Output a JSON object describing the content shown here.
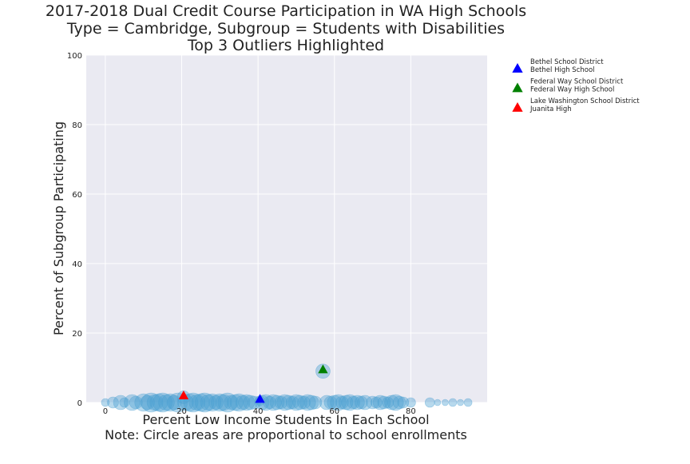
{
  "chart_data": {
    "type": "scatter",
    "title_lines": [
      "2017-2018 Dual Credit Course Participation in WA High Schools",
      "Type = Cambridge, Subgroup = Students with Disabilities",
      "Top 3 Outliers Highlighted"
    ],
    "xlabel_lines": [
      "Percent Low Income Students In Each School",
      "Note: Circle areas are proportional to school enrollments"
    ],
    "ylabel": "Percent of Subgroup Participating",
    "xlim": [
      -5,
      100
    ],
    "ylim": [
      0,
      100
    ],
    "xticks": [
      0,
      20,
      40,
      60,
      80
    ],
    "yticks": [
      0,
      20,
      40,
      60,
      80,
      100
    ],
    "grid": true,
    "legend_position": "outside-right-top",
    "colors": {
      "plot_bg": "#eaeaf2",
      "grid": "#ffffff",
      "circles": "#4c9fd1"
    },
    "schools": [
      {
        "x": 0,
        "y": 0,
        "r": 5
      },
      {
        "x": 2,
        "y": 0,
        "r": 7
      },
      {
        "x": 4,
        "y": 0,
        "r": 9
      },
      {
        "x": 5,
        "y": 0,
        "r": 6
      },
      {
        "x": 7,
        "y": 0,
        "r": 10
      },
      {
        "x": 8,
        "y": 0,
        "r": 8
      },
      {
        "x": 10,
        "y": 0,
        "r": 11
      },
      {
        "x": 11,
        "y": 0,
        "r": 9
      },
      {
        "x": 12,
        "y": 0,
        "r": 12
      },
      {
        "x": 13,
        "y": 0,
        "r": 10
      },
      {
        "x": 14,
        "y": 0,
        "r": 11
      },
      {
        "x": 15,
        "y": 0,
        "r": 12
      },
      {
        "x": 16,
        "y": 0,
        "r": 10
      },
      {
        "x": 17,
        "y": 0,
        "r": 11
      },
      {
        "x": 18,
        "y": 0,
        "r": 9
      },
      {
        "x": 19,
        "y": 0,
        "r": 12
      },
      {
        "x": 21,
        "y": 0,
        "r": 10
      },
      {
        "x": 22,
        "y": 0,
        "r": 11
      },
      {
        "x": 23,
        "y": 0,
        "r": 12
      },
      {
        "x": 24,
        "y": 0,
        "r": 10
      },
      {
        "x": 25,
        "y": 0,
        "r": 11
      },
      {
        "x": 26,
        "y": 0,
        "r": 12
      },
      {
        "x": 27,
        "y": 0,
        "r": 10
      },
      {
        "x": 28,
        "y": 0,
        "r": 11
      },
      {
        "x": 29,
        "y": 0,
        "r": 9
      },
      {
        "x": 30,
        "y": 0,
        "r": 11
      },
      {
        "x": 31,
        "y": 0,
        "r": 10
      },
      {
        "x": 32,
        "y": 0,
        "r": 12
      },
      {
        "x": 33,
        "y": 0,
        "r": 9
      },
      {
        "x": 34,
        "y": 0,
        "r": 10
      },
      {
        "x": 35,
        "y": 0,
        "r": 11
      },
      {
        "x": 36,
        "y": 0,
        "r": 9
      },
      {
        "x": 37,
        "y": 0,
        "r": 10
      },
      {
        "x": 38,
        "y": 0,
        "r": 9
      },
      {
        "x": 39,
        "y": 0,
        "r": 8
      },
      {
        "x": 41,
        "y": 0,
        "r": 9
      },
      {
        "x": 42,
        "y": 0,
        "r": 10
      },
      {
        "x": 43,
        "y": 0,
        "r": 8
      },
      {
        "x": 44,
        "y": 0,
        "r": 10
      },
      {
        "x": 45,
        "y": 0,
        "r": 9
      },
      {
        "x": 46,
        "y": 0,
        "r": 8
      },
      {
        "x": 47,
        "y": 0,
        "r": 10
      },
      {
        "x": 48,
        "y": 0,
        "r": 9
      },
      {
        "x": 49,
        "y": 0,
        "r": 8
      },
      {
        "x": 50,
        "y": 0,
        "r": 10
      },
      {
        "x": 51,
        "y": 0,
        "r": 9
      },
      {
        "x": 52,
        "y": 0,
        "r": 8
      },
      {
        "x": 53,
        "y": 0,
        "r": 10
      },
      {
        "x": 54,
        "y": 0,
        "r": 9
      },
      {
        "x": 55,
        "y": 0,
        "r": 8
      },
      {
        "x": 58,
        "y": 0,
        "r": 9
      },
      {
        "x": 59,
        "y": 0,
        "r": 8
      },
      {
        "x": 60,
        "y": 0,
        "r": 9
      },
      {
        "x": 61,
        "y": 0,
        "r": 10
      },
      {
        "x": 62,
        "y": 0,
        "r": 8
      },
      {
        "x": 63,
        "y": 0,
        "r": 9
      },
      {
        "x": 64,
        "y": 0,
        "r": 10
      },
      {
        "x": 65,
        "y": 0,
        "r": 8
      },
      {
        "x": 66,
        "y": 0,
        "r": 9
      },
      {
        "x": 67,
        "y": 0,
        "r": 8
      },
      {
        "x": 68,
        "y": 0,
        "r": 9
      },
      {
        "x": 70,
        "y": 0,
        "r": 8
      },
      {
        "x": 71,
        "y": 0,
        "r": 7
      },
      {
        "x": 72,
        "y": 0,
        "r": 9
      },
      {
        "x": 73,
        "y": 0,
        "r": 8
      },
      {
        "x": 74,
        "y": 0,
        "r": 7
      },
      {
        "x": 75,
        "y": 0,
        "r": 9
      },
      {
        "x": 76,
        "y": 0,
        "r": 10
      },
      {
        "x": 77,
        "y": 0,
        "r": 8
      },
      {
        "x": 78,
        "y": 0,
        "r": 7
      },
      {
        "x": 80,
        "y": 0,
        "r": 6
      },
      {
        "x": 85,
        "y": 0,
        "r": 6
      },
      {
        "x": 87,
        "y": 0,
        "r": 4
      },
      {
        "x": 89,
        "y": 0,
        "r": 4
      },
      {
        "x": 91,
        "y": 0,
        "r": 5
      },
      {
        "x": 93,
        "y": 0,
        "r": 4
      },
      {
        "x": 95,
        "y": 0,
        "r": 5
      },
      {
        "x": 20.5,
        "y": 1.5,
        "r": 8
      },
      {
        "x": 40.5,
        "y": 0.5,
        "r": 6
      },
      {
        "x": 57,
        "y": 9,
        "r": 9
      }
    ],
    "outliers": [
      {
        "district": "Bethel School District",
        "school": "Bethel High School",
        "x": 40.5,
        "y": 0.5,
        "color": "#0000ff"
      },
      {
        "district": "Federal Way School District",
        "school": "Federal Way High School",
        "x": 57,
        "y": 9,
        "color": "#008000"
      },
      {
        "district": "Lake Washington School District",
        "school": "Juanita High",
        "x": 20.5,
        "y": 1.5,
        "color": "#ff0000"
      }
    ]
  }
}
